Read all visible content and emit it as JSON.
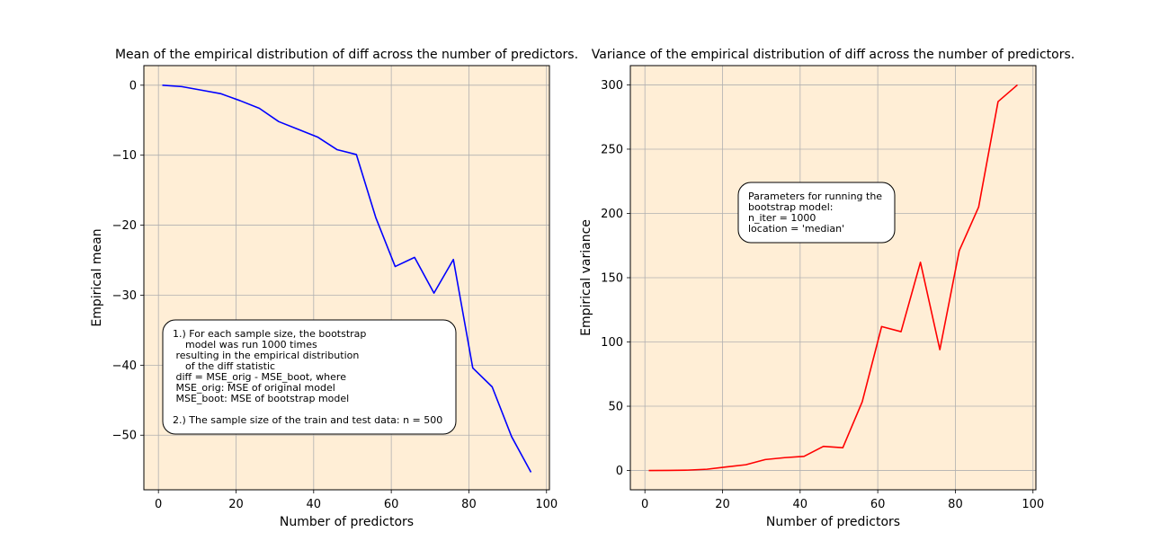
{
  "chart_data": [
    {
      "type": "line",
      "title": "Mean of the empirical distribution of diff across the number of predictors.",
      "xlabel": "Number of predictors",
      "ylabel": "Empirical mean",
      "xlim": [
        -3.75,
        100.75
      ],
      "ylim": [
        -57.8,
        2.8
      ],
      "xticks": [
        0,
        20,
        40,
        60,
        80,
        100
      ],
      "xtick_labels": [
        "0",
        "20",
        "40",
        "60",
        "80",
        "100"
      ],
      "yticks": [
        0,
        -10,
        -20,
        -30,
        -40,
        -50
      ],
      "ytick_labels": [
        "0",
        "−10",
        "−20",
        "−30",
        "−40",
        "−50"
      ],
      "grid": true,
      "background": "#ffeed6",
      "series": [
        {
          "color": "#0000ff",
          "x": [
            1,
            6,
            11,
            16,
            21,
            26,
            31,
            36,
            41,
            46,
            51,
            56,
            61,
            66,
            71,
            76,
            81,
            86,
            91,
            96
          ],
          "y": [
            0,
            -0.2,
            -0.7,
            -1.2,
            -2.2,
            -3.3,
            -5.2,
            -6.3,
            -7.4,
            -9.2,
            -9.9,
            -18.9,
            -25.9,
            -24.6,
            -29.7,
            -24.9,
            -40.4,
            -43.1,
            -50.2,
            -55.3
          ]
        }
      ],
      "annotation": {
        "lines": [
          "1.) For each sample size, the bootstrap",
          "    model was run 1000 times",
          " resulting in the empirical distribution",
          "    of the diff statistic",
          " diff = MSE_orig - MSE_boot, where",
          " MSE_orig: MSE of original model",
          " MSE_boot: MSE of bootstrap model",
          "",
          "2.) The sample size of the train and test data: n = 500"
        ]
      }
    },
    {
      "type": "line",
      "title": "Variance of the empirical distribution of diff across the number of predictors.",
      "xlabel": "Number of predictors",
      "ylabel": "Empirical variance",
      "xlim": [
        -3.75,
        100.75
      ],
      "ylim": [
        -15,
        315
      ],
      "xticks": [
        0,
        20,
        40,
        60,
        80,
        100
      ],
      "xtick_labels": [
        "0",
        "20",
        "40",
        "60",
        "80",
        "100"
      ],
      "yticks": [
        0,
        50,
        100,
        150,
        200,
        250,
        300
      ],
      "ytick_labels": [
        "0",
        "50",
        "100",
        "150",
        "200",
        "250",
        "300"
      ],
      "grid": true,
      "background": "#ffeed6",
      "series": [
        {
          "color": "#ff0000",
          "x": [
            1,
            6,
            11,
            16,
            21,
            26,
            31,
            36,
            41,
            46,
            51,
            56,
            61,
            66,
            71,
            76,
            81,
            86,
            91,
            96
          ],
          "y": [
            0,
            0.1,
            0.3,
            1.0,
            2.8,
            4.5,
            8.5,
            10.0,
            11.0,
            18.8,
            17.7,
            53.5,
            112,
            108,
            162,
            94,
            171,
            205,
            287,
            300
          ]
        }
      ],
      "annotation": {
        "lines": [
          "Parameters for running the",
          "bootstrap model:",
          "n_iter = 1000",
          "location = 'median'"
        ]
      }
    }
  ]
}
